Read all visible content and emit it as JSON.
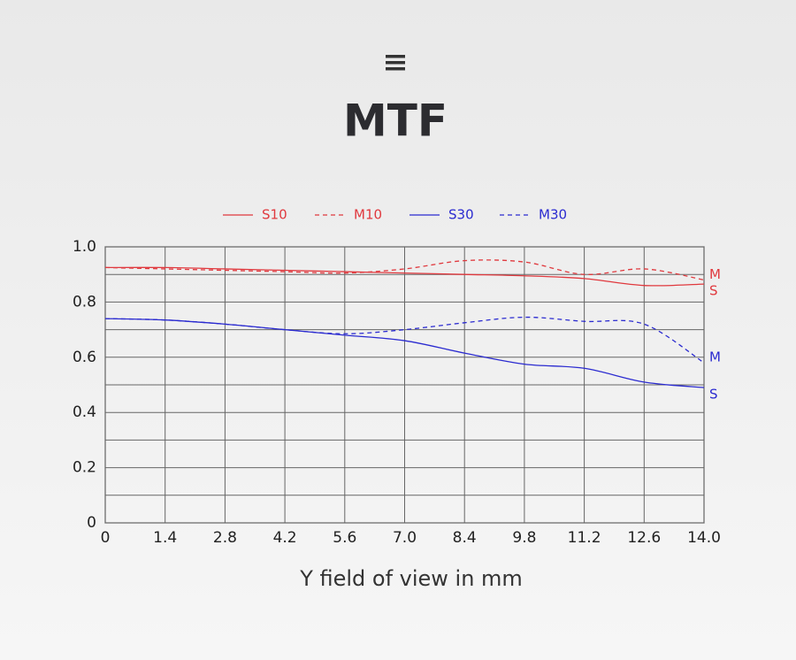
{
  "chart_data": {
    "type": "line",
    "title": "MTF",
    "x_label": "Y field of view in mm",
    "x": [
      0,
      1.4,
      2.8,
      4.2,
      5.6,
      7.0,
      8.4,
      9.8,
      11.2,
      12.6,
      14.0
    ],
    "series": [
      {
        "name": "S10",
        "color": "#e0393e",
        "dash": false,
        "end_label": "S",
        "values": [
          0.925,
          0.925,
          0.92,
          0.915,
          0.91,
          0.905,
          0.9,
          0.895,
          0.885,
          0.86,
          0.865
        ]
      },
      {
        "name": "M10",
        "color": "#e0393e",
        "dash": true,
        "end_label": "M",
        "values": [
          0.925,
          0.92,
          0.915,
          0.91,
          0.905,
          0.92,
          0.95,
          0.945,
          0.9,
          0.92,
          0.88
        ]
      },
      {
        "name": "S30",
        "color": "#2b2bd0",
        "dash": false,
        "end_label": "S",
        "values": [
          0.74,
          0.735,
          0.72,
          0.7,
          0.68,
          0.66,
          0.615,
          0.575,
          0.56,
          0.51,
          0.49
        ]
      },
      {
        "name": "M30",
        "color": "#2b2bd0",
        "dash": true,
        "end_label": "M",
        "values": [
          0.74,
          0.735,
          0.72,
          0.7,
          0.685,
          0.7,
          0.725,
          0.745,
          0.73,
          0.72,
          0.58
        ]
      }
    ],
    "xlim": [
      0,
      14
    ],
    "xticks": [
      0,
      1.4,
      2.8,
      4.2,
      5.6,
      {
        "value": 7,
        "label": "7.0"
      },
      8.4,
      9.8,
      11.2,
      12.6,
      {
        "value": 14,
        "label": "14.0"
      }
    ],
    "ylim": [
      0,
      1
    ],
    "yticks": [
      0,
      0.2,
      0.4,
      0.6,
      0.8,
      {
        "value": 1,
        "label": "1.0"
      }
    ],
    "y_minor_grid": [
      0.1,
      0.3,
      0.5,
      0.7,
      0.9
    ],
    "grid": true
  }
}
